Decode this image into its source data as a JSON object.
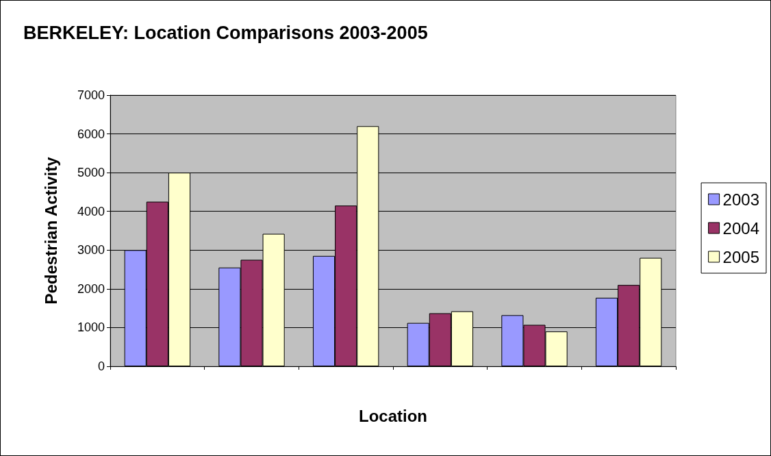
{
  "chart_data": {
    "type": "bar",
    "title": "BERKELEY: Location Comparisons 2003-2005",
    "xlabel": "Location",
    "ylabel": "Pedestrian Activity",
    "categories": [
      null,
      null,
      null,
      null,
      null,
      null
    ],
    "series": [
      {
        "name": "2003",
        "color": "#9999ff",
        "values": [
          3000,
          2550,
          2850,
          1120,
          1320,
          1770
        ]
      },
      {
        "name": "2004",
        "color": "#993366",
        "values": [
          4250,
          2750,
          4150,
          1370,
          1070,
          2100
        ]
      },
      {
        "name": "2005",
        "color": "#ffffcc",
        "values": [
          5000,
          3420,
          6200,
          1420,
          900,
          2800
        ]
      }
    ],
    "ylim": [
      0,
      7000
    ],
    "yticks": [
      0,
      1000,
      2000,
      3000,
      4000,
      5000,
      6000,
      7000
    ],
    "grid": "y",
    "legend": "right"
  }
}
